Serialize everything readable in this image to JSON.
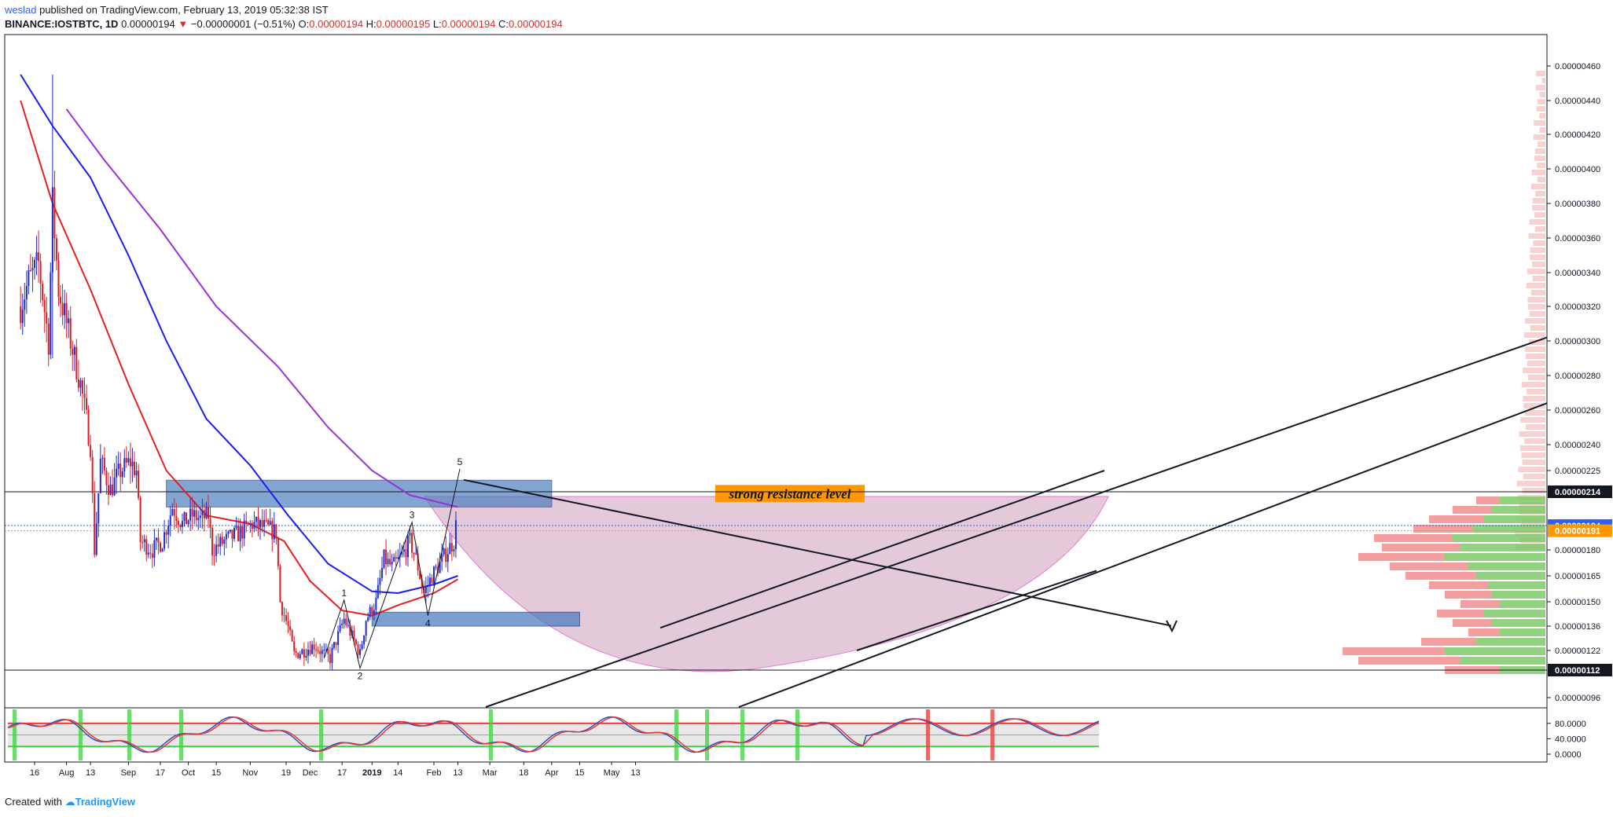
{
  "header": {
    "publisher": "weslad",
    "published_text": "published on TradingView.com, February 13, 2019 05:32:38 IST",
    "symbol": "BINANCE:IOSTBTC, 1D",
    "last": "0.00000194",
    "change": "−0.00000001 (−0.51%)",
    "o_label": "O:",
    "o_value": "0.00000194",
    "h_label": "H:",
    "h_value": "0.00000195",
    "l_label": "L:",
    "l_value": "0.00000194",
    "c_label": "C:",
    "c_value": "0.00000194"
  },
  "footer": {
    "created_with": "Created with",
    "brand": "TradingView"
  },
  "colors": {
    "up": "#1e2bd6",
    "down": "#e01b24",
    "ma_red": "#e81e1e",
    "ma_blue": "#1c1cf0",
    "ma_purple": "#9b30d9",
    "zone_fill": "#4f7fbf",
    "cup_fill": "#d9b3c9",
    "stoch_k": "#2a52be",
    "stoch_d": "#e53935",
    "highlight_green": "#3ad43a",
    "highlight_red": "#e53935"
  },
  "chart_data": {
    "type": "candlestick",
    "timeframe": "1D",
    "price_axis": {
      "ticks": [
        "0.00000460",
        "0.00000440",
        "0.00000420",
        "0.00000400",
        "0.00000380",
        "0.00000360",
        "0.00000340",
        "0.00000320",
        "0.00000300",
        "0.00000280",
        "0.00000260",
        "0.00000240",
        "0.00000225",
        "0.00000180",
        "0.00000165",
        "0.00000150",
        "0.00000136",
        "0.00000122",
        "0.00000096"
      ],
      "price_tags": [
        {
          "label": "0.00000214",
          "value": 2.14e-06,
          "style": "black"
        },
        {
          "label": "0.00000194",
          "value": 1.94e-06,
          "style": "blue"
        },
        {
          "label": "0.00000191",
          "value": 1.91e-06,
          "style": "orange"
        },
        {
          "label": "0.00000112",
          "value": 1.12e-06,
          "style": "black"
        }
      ]
    },
    "time_axis": {
      "labels": [
        {
          "text": "16",
          "date": "2018-07-16"
        },
        {
          "text": "Aug",
          "date": "2018-08-01"
        },
        {
          "text": "13",
          "date": "2018-08-13"
        },
        {
          "text": "Sep",
          "date": "2018-09-01"
        },
        {
          "text": "17",
          "date": "2018-09-17"
        },
        {
          "text": "Oct",
          "date": "2018-10-01"
        },
        {
          "text": "15",
          "date": "2018-10-15"
        },
        {
          "text": "Nov",
          "date": "2018-11-01"
        },
        {
          "text": "19",
          "date": "2018-11-19"
        },
        {
          "text": "Dec",
          "date": "2018-12-01"
        },
        {
          "text": "17",
          "date": "2018-12-17"
        },
        {
          "text": "2019",
          "date": "2019-01-01",
          "bold": true
        },
        {
          "text": "14",
          "date": "2019-01-14"
        },
        {
          "text": "Feb",
          "date": "2019-02-01"
        },
        {
          "text": "13",
          "date": "2019-02-13"
        },
        {
          "text": "Mar",
          "date": "2019-03-01"
        },
        {
          "text": "18",
          "date": "2019-03-18"
        },
        {
          "text": "Apr",
          "date": "2019-04-01"
        },
        {
          "text": "15",
          "date": "2019-04-15"
        },
        {
          "text": "May",
          "date": "2019-05-01"
        },
        {
          "text": "13",
          "date": "2019-05-13"
        }
      ]
    },
    "close_path": [
      [
        "2018-07-09",
        3.2e-06
      ],
      [
        "2018-07-13",
        3.35e-06
      ],
      [
        "2018-07-18",
        3.45e-06
      ],
      [
        "2018-07-23",
        3e-06
      ],
      [
        "2018-07-25",
        3.8e-06
      ],
      [
        "2018-07-28",
        3.3e-06
      ],
      [
        "2018-08-03",
        3e-06
      ],
      [
        "2018-08-08",
        2.75e-06
      ],
      [
        "2018-08-13",
        2.4e-06
      ],
      [
        "2018-08-15",
        1.8e-06
      ],
      [
        "2018-08-18",
        2.3e-06
      ],
      [
        "2018-08-23",
        2.15e-06
      ],
      [
        "2018-08-28",
        2.25e-06
      ],
      [
        "2018-09-02",
        2.3e-06
      ],
      [
        "2018-09-05",
        2.25e-06
      ],
      [
        "2018-09-07",
        1.85e-06
      ],
      [
        "2018-09-13",
        1.8e-06
      ],
      [
        "2018-09-18",
        1.85e-06
      ],
      [
        "2018-09-23",
        2.05e-06
      ],
      [
        "2018-09-28",
        1.95e-06
      ],
      [
        "2018-10-03",
        2e-06
      ],
      [
        "2018-10-07",
        1.98e-06
      ],
      [
        "2018-10-11",
        2e-06
      ],
      [
        "2018-10-13",
        1.8e-06
      ],
      [
        "2018-10-19",
        1.85e-06
      ],
      [
        "2018-10-27",
        1.9e-06
      ],
      [
        "2018-11-02",
        1.95e-06
      ],
      [
        "2018-11-08",
        1.93e-06
      ],
      [
        "2018-11-14",
        1.9e-06
      ],
      [
        "2018-11-16",
        1.5e-06
      ],
      [
        "2018-11-20",
        1.35e-06
      ],
      [
        "2018-11-23",
        1.2e-06
      ],
      [
        "2018-11-28",
        1.22e-06
      ],
      [
        "2018-12-03",
        1.25e-06
      ],
      [
        "2018-12-08",
        1.2e-06
      ],
      [
        "2018-12-11",
        1.18e-06
      ],
      [
        "2018-12-18",
        1.4e-06
      ],
      [
        "2018-12-22",
        1.3e-06
      ],
      [
        "2018-12-26",
        1.2e-06
      ],
      [
        "2018-12-29",
        1.4e-06
      ],
      [
        "2019-01-03",
        1.5e-06
      ],
      [
        "2019-01-07",
        1.75e-06
      ],
      [
        "2019-01-11",
        1.7e-06
      ],
      [
        "2019-01-15",
        1.75e-06
      ],
      [
        "2019-01-20",
        1.85e-06
      ],
      [
        "2019-01-23",
        1.75e-06
      ],
      [
        "2019-01-27",
        1.55e-06
      ],
      [
        "2019-01-31",
        1.65e-06
      ],
      [
        "2019-02-04",
        1.72e-06
      ],
      [
        "2019-02-08",
        1.8e-06
      ],
      [
        "2019-02-11",
        1.85e-06
      ],
      [
        "2019-02-12",
        1.94e-06
      ]
    ],
    "moving_averages": [
      {
        "color_key": "ma_red",
        "points": [
          [
            "2018-07-09",
            4.4e-06
          ],
          [
            "2018-07-25",
            3.8e-06
          ],
          [
            "2018-08-13",
            3.3e-06
          ],
          [
            "2018-09-01",
            2.75e-06
          ],
          [
            "2018-09-20",
            2.25e-06
          ],
          [
            "2018-10-10",
            2e-06
          ],
          [
            "2018-11-01",
            1.95e-06
          ],
          [
            "2018-11-18",
            1.85e-06
          ],
          [
            "2018-12-01",
            1.62e-06
          ],
          [
            "2018-12-17",
            1.45e-06
          ],
          [
            "2019-01-01",
            1.42e-06
          ],
          [
            "2019-01-14",
            1.48e-06
          ],
          [
            "2019-02-01",
            1.55e-06
          ],
          [
            "2019-02-13",
            1.63e-06
          ]
        ]
      },
      {
        "color_key": "ma_blue",
        "points": [
          [
            "2018-07-09",
            4.55e-06
          ],
          [
            "2018-07-25",
            4.25e-06
          ],
          [
            "2018-08-13",
            3.95e-06
          ],
          [
            "2018-09-01",
            3.5e-06
          ],
          [
            "2018-09-20",
            3e-06
          ],
          [
            "2018-10-10",
            2.55e-06
          ],
          [
            "2018-11-01",
            2.28e-06
          ],
          [
            "2018-11-20",
            2e-06
          ],
          [
            "2018-12-10",
            1.72e-06
          ],
          [
            "2019-01-01",
            1.56e-06
          ],
          [
            "2019-01-14",
            1.55e-06
          ],
          [
            "2019-02-01",
            1.6e-06
          ],
          [
            "2019-02-13",
            1.65e-06
          ]
        ]
      },
      {
        "color_key": "ma_purple",
        "points": [
          [
            "2018-08-01",
            4.35e-06
          ],
          [
            "2018-08-20",
            4.05e-06
          ],
          [
            "2018-09-17",
            3.65e-06
          ],
          [
            "2018-10-15",
            3.2e-06
          ],
          [
            "2018-11-15",
            2.85e-06
          ],
          [
            "2018-12-10",
            2.5e-06
          ],
          [
            "2019-01-01",
            2.25e-06
          ],
          [
            "2019-01-20",
            2.12e-06
          ],
          [
            "2019-02-13",
            2.05e-06
          ]
        ]
      }
    ],
    "annotations": {
      "resistance_zone": {
        "text": "strong resistance level",
        "date_from": "2018-09-20",
        "date_to": "2019-04-01",
        "price_top": 2.2e-06,
        "price_bottom": 2.05e-06
      },
      "support_zone": {
        "date_from": "2019-01-01",
        "date_to": "2019-04-15",
        "price_top": 1.44e-06,
        "price_bottom": 1.36e-06
      },
      "horizontal_lines": [
        2.14e-06,
        1.12e-06
      ],
      "wave_labels": [
        {
          "text": "1",
          "date": "2018-12-18",
          "price": 1.51e-06
        },
        {
          "text": "2",
          "date": "2018-12-26",
          "price": 1.13e-06
        },
        {
          "text": "3",
          "date": "2019-01-21",
          "price": 1.96e-06
        },
        {
          "text": "4",
          "date": "2019-01-29",
          "price": 1.42e-06
        },
        {
          "text": "5",
          "date": "2019-02-14",
          "price": 2.26e-06
        }
      ]
    }
  },
  "stoch_data": {
    "ticks": [
      "80.0000",
      "40.0000",
      "0.0000"
    ],
    "upper_level": 80,
    "lower_level": 20
  }
}
